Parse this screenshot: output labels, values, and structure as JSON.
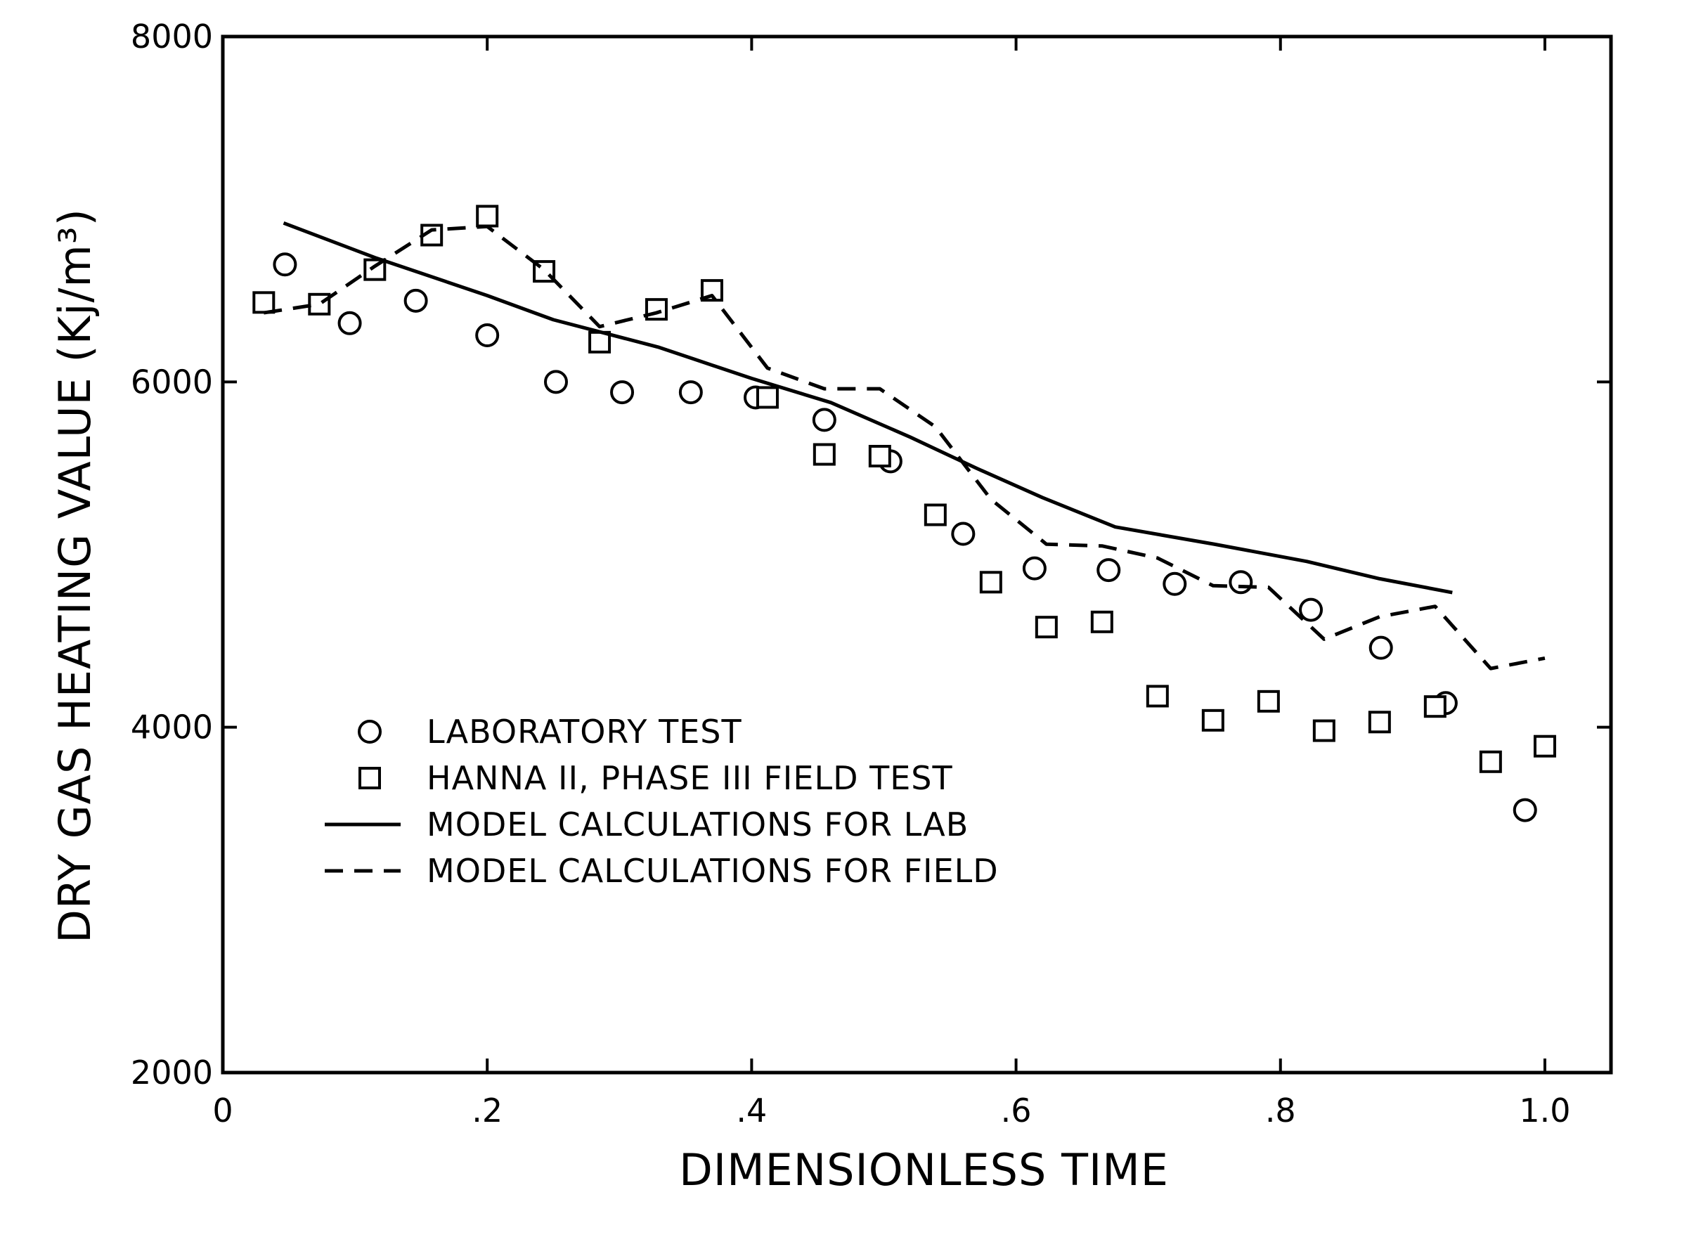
{
  "chart_data": {
    "type": "scatter",
    "title": "",
    "xlabel": "DIMENSIONLESS TIME",
    "ylabel": "DRY GAS HEATING VALUE (Kj/m³)",
    "xlim": [
      0,
      1.05
    ],
    "ylim": [
      2000,
      8000
    ],
    "grid": false,
    "legend_position": "center-left",
    "x_ticks": [
      {
        "value": 0,
        "label": "0"
      },
      {
        "value": 0.2,
        "label": ".2"
      },
      {
        "value": 0.4,
        "label": ".4"
      },
      {
        "value": 0.6,
        "label": ".6"
      },
      {
        "value": 0.8,
        "label": ".8"
      },
      {
        "value": 1.0,
        "label": "1.0"
      }
    ],
    "y_ticks": [
      {
        "value": 2000,
        "label": "2000"
      },
      {
        "value": 4000,
        "label": "4000"
      },
      {
        "value": 6000,
        "label": "6000"
      },
      {
        "value": 8000,
        "label": "8000"
      }
    ],
    "series": [
      {
        "name": "LABORATORY TEST",
        "kind": "scatter",
        "marker": "circle",
        "x": [
          0.047,
          0.096,
          0.146,
          0.2,
          0.252,
          0.302,
          0.354,
          0.403,
          0.455,
          0.505,
          0.56,
          0.614,
          0.67,
          0.72,
          0.77,
          0.823,
          0.876,
          0.925,
          0.985
        ],
        "y": [
          6680,
          6340,
          6470,
          6270,
          6000,
          5940,
          5940,
          5910,
          5780,
          5540,
          5120,
          4920,
          4910,
          4830,
          4840,
          4680,
          4460,
          4140,
          3520
        ]
      },
      {
        "name": "HANNA II, PHASE III FIELD TEST",
        "kind": "scatter",
        "marker": "square",
        "x": [
          0.031,
          0.073,
          0.115,
          0.158,
          0.2,
          0.243,
          0.285,
          0.328,
          0.37,
          0.412,
          0.455,
          0.497,
          0.539,
          0.581,
          0.623,
          0.665,
          0.707,
          0.749,
          0.791,
          0.833,
          0.875,
          0.917,
          0.959,
          1.0
        ],
        "y": [
          6460,
          6450,
          6650,
          6850,
          6960,
          6640,
          6230,
          6420,
          6530,
          5910,
          5580,
          5570,
          5230,
          4840,
          4580,
          4610,
          4180,
          4040,
          4150,
          3980,
          4030,
          4120,
          3800,
          3890
        ]
      },
      {
        "name": "MODEL CALCULATIONS FOR LAB",
        "kind": "line",
        "style": "solid",
        "x": [
          0.046,
          0.115,
          0.2,
          0.25,
          0.33,
          0.4,
          0.46,
          0.52,
          0.57,
          0.62,
          0.675,
          0.75,
          0.82,
          0.875,
          0.93
        ],
        "y": [
          6920,
          6720,
          6500,
          6360,
          6200,
          6020,
          5880,
          5680,
          5500,
          5330,
          5160,
          5060,
          4960,
          4860,
          4780
        ]
      },
      {
        "name": "MODEL CALCULATIONS FOR FIELD",
        "kind": "line",
        "style": "dashed",
        "x": [
          0.031,
          0.073,
          0.115,
          0.158,
          0.2,
          0.243,
          0.285,
          0.328,
          0.37,
          0.412,
          0.455,
          0.497,
          0.539,
          0.581,
          0.623,
          0.665,
          0.707,
          0.749,
          0.791,
          0.833,
          0.875,
          0.917,
          0.959,
          1.0
        ],
        "y": [
          6400,
          6450,
          6670,
          6880,
          6900,
          6650,
          6320,
          6400,
          6500,
          6080,
          5960,
          5960,
          5740,
          5320,
          5060,
          5050,
          4980,
          4820,
          4810,
          4510,
          4640,
          4700,
          4340,
          4400
        ]
      }
    ]
  }
}
